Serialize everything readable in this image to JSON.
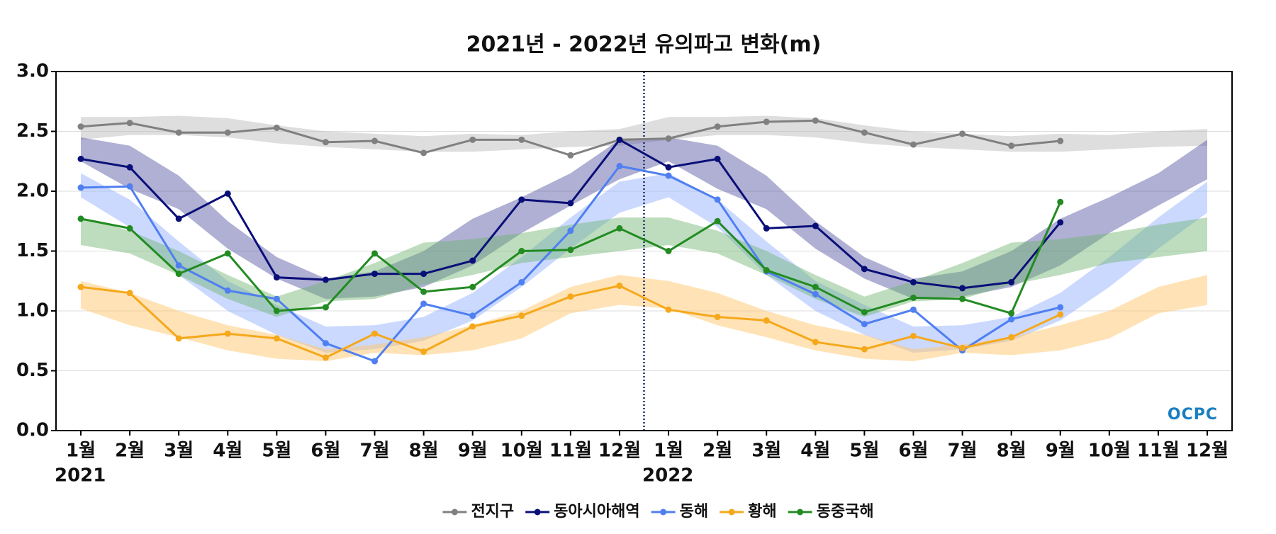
{
  "chart_data": {
    "type": "line",
    "title": "2021년 - 2022년 유의파고 변화(m)",
    "categories": [
      "1월",
      "2월",
      "3월",
      "4월",
      "5월",
      "6월",
      "7월",
      "8월",
      "9월",
      "10월",
      "11월",
      "12월",
      "1월",
      "2월",
      "3월",
      "4월",
      "5월",
      "6월",
      "7월",
      "8월",
      "9월",
      "10월",
      "11월",
      "12월"
    ],
    "years": [
      "2021",
      "2022"
    ],
    "ylim": [
      0,
      3
    ],
    "yticks": [
      {
        "value": 0,
        "label": "0.0"
      },
      {
        "value": 0.5,
        "label": "0.5"
      },
      {
        "value": 1,
        "label": "1.0"
      },
      {
        "value": 1.5,
        "label": "1.5"
      },
      {
        "value": 2,
        "label": "2.0"
      },
      {
        "value": 2.5,
        "label": "2.5"
      },
      {
        "value": 3,
        "label": "3.0"
      }
    ],
    "grid": true,
    "legend": "bottom",
    "logo": "OCPC",
    "series": [
      {
        "name": "전지구",
        "color": "#808080",
        "band_color": "rgba(190,190,190,0.5)",
        "values": [
          2.54,
          2.57,
          2.49,
          2.49,
          2.53,
          2.41,
          2.42,
          2.32,
          2.43,
          2.43,
          2.3,
          2.43,
          2.44,
          2.54,
          2.58,
          2.59,
          2.49,
          2.39,
          2.48,
          2.38,
          2.42,
          null,
          null,
          null
        ],
        "band_upper": [
          2.62,
          2.62,
          2.63,
          2.61,
          2.55,
          2.5,
          2.48,
          2.46,
          2.48,
          2.47,
          2.5,
          2.52,
          2.62,
          2.62,
          2.63,
          2.61,
          2.55,
          2.5,
          2.48,
          2.46,
          2.48,
          2.47,
          2.5,
          2.52
        ],
        "band_lower": [
          2.43,
          2.47,
          2.47,
          2.45,
          2.4,
          2.37,
          2.35,
          2.33,
          2.33,
          2.35,
          2.37,
          2.38,
          2.43,
          2.47,
          2.47,
          2.45,
          2.4,
          2.37,
          2.35,
          2.33,
          2.33,
          2.35,
          2.37,
          2.38
        ]
      },
      {
        "name": "동아시아해역",
        "color": "#0a0f78",
        "band_color": "rgba(80,80,160,0.45)",
        "values": [
          2.27,
          2.2,
          1.77,
          1.98,
          1.28,
          1.26,
          1.31,
          1.31,
          1.42,
          1.93,
          1.9,
          2.43,
          2.2,
          2.27,
          1.69,
          1.71,
          1.35,
          1.24,
          1.19,
          1.24,
          1.74,
          null,
          null,
          null
        ],
        "band_upper": [
          2.45,
          2.38,
          2.13,
          1.75,
          1.45,
          1.27,
          1.33,
          1.5,
          1.77,
          1.95,
          2.15,
          2.43,
          2.45,
          2.38,
          2.13,
          1.75,
          1.45,
          1.27,
          1.33,
          1.5,
          1.77,
          1.95,
          2.15,
          2.43
        ],
        "band_lower": [
          2.25,
          2.02,
          1.85,
          1.52,
          1.27,
          1.1,
          1.12,
          1.2,
          1.38,
          1.65,
          1.88,
          2.1,
          2.25,
          2.02,
          1.85,
          1.52,
          1.27,
          1.1,
          1.12,
          1.2,
          1.38,
          1.65,
          1.88,
          2.1
        ]
      },
      {
        "name": "동해",
        "color": "#4f7ff0",
        "band_color": "rgba(140,170,255,0.45)",
        "values": [
          2.03,
          2.04,
          1.38,
          1.17,
          1.1,
          0.73,
          0.58,
          1.06,
          0.96,
          1.24,
          1.67,
          2.21,
          2.13,
          1.93,
          1.33,
          1.14,
          0.89,
          1.01,
          0.67,
          0.93,
          1.03,
          null,
          null,
          null
        ],
        "band_upper": [
          2.15,
          1.93,
          1.58,
          1.25,
          1.05,
          0.87,
          0.88,
          0.95,
          1.15,
          1.45,
          1.78,
          2.08,
          2.15,
          1.93,
          1.58,
          1.25,
          1.05,
          0.87,
          0.88,
          0.95,
          1.15,
          1.45,
          1.78,
          2.08
        ],
        "band_lower": [
          1.95,
          1.7,
          1.3,
          1.0,
          0.8,
          0.65,
          0.68,
          0.75,
          0.92,
          1.2,
          1.52,
          1.82,
          1.95,
          1.7,
          1.3,
          1.0,
          0.8,
          0.65,
          0.68,
          0.75,
          0.92,
          1.2,
          1.52,
          1.82
        ]
      },
      {
        "name": "황해",
        "color": "#f5a81c",
        "band_color": "rgba(255,200,110,0.5)",
        "values": [
          1.2,
          1.15,
          0.77,
          0.81,
          0.77,
          0.61,
          0.81,
          0.66,
          0.87,
          0.96,
          1.12,
          1.21,
          1.01,
          0.95,
          0.92,
          0.74,
          0.68,
          0.79,
          0.69,
          0.78,
          0.97,
          null,
          null,
          null
        ],
        "band_upper": [
          1.25,
          1.15,
          1.0,
          0.88,
          0.8,
          0.68,
          0.72,
          0.78,
          0.88,
          1.0,
          1.2,
          1.3,
          1.25,
          1.15,
          1.0,
          0.88,
          0.8,
          0.68,
          0.72,
          0.78,
          0.88,
          1.0,
          1.2,
          1.3
        ],
        "band_lower": [
          1.02,
          0.88,
          0.78,
          0.67,
          0.6,
          0.58,
          0.65,
          0.63,
          0.67,
          0.77,
          0.98,
          1.05,
          1.02,
          0.88,
          0.78,
          0.67,
          0.6,
          0.58,
          0.65,
          0.63,
          0.67,
          0.77,
          0.98,
          1.05
        ]
      },
      {
        "name": "동중국해",
        "color": "#228b22",
        "band_color": "rgba(110,180,110,0.45)",
        "values": [
          1.77,
          1.69,
          1.31,
          1.48,
          1.0,
          1.03,
          1.48,
          1.16,
          1.2,
          1.5,
          1.51,
          1.69,
          1.5,
          1.75,
          1.34,
          1.2,
          0.99,
          1.11,
          1.1,
          0.98,
          1.91,
          null,
          null,
          null
        ],
        "band_upper": [
          1.78,
          1.67,
          1.5,
          1.3,
          1.12,
          1.25,
          1.4,
          1.57,
          1.6,
          1.65,
          1.72,
          1.78,
          1.78,
          1.67,
          1.5,
          1.3,
          1.12,
          1.25,
          1.4,
          1.57,
          1.6,
          1.65,
          1.72,
          1.78
        ],
        "band_lower": [
          1.55,
          1.48,
          1.3,
          1.1,
          0.95,
          1.08,
          1.1,
          1.22,
          1.3,
          1.4,
          1.45,
          1.5,
          1.55,
          1.48,
          1.3,
          1.1,
          0.95,
          1.08,
          1.1,
          1.22,
          1.3,
          1.4,
          1.45,
          1.5
        ]
      }
    ]
  }
}
